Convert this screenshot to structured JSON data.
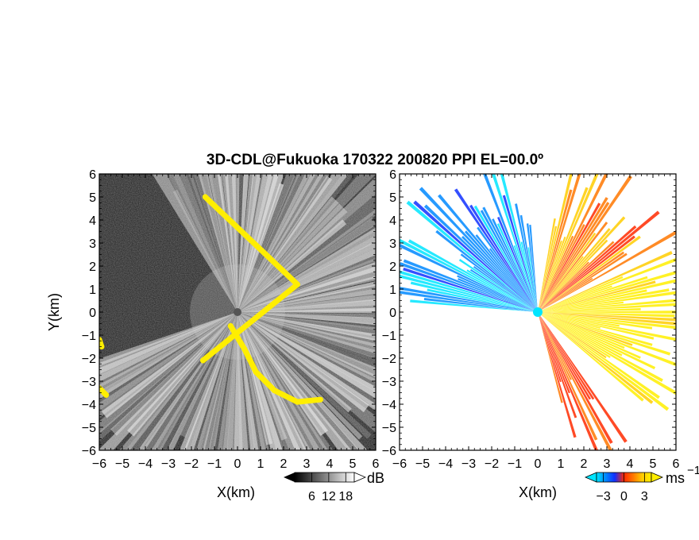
{
  "chart_data": [
    {
      "type": "heatmap",
      "title": "3D-CDL@Fukuoka 170322 200820 PPI EL=00.0º",
      "panel": "left",
      "quantity": "signal intensity",
      "xlabel": "X(km)",
      "ylabel": "Y(km)",
      "xlim": [
        -6,
        6
      ],
      "ylim": [
        -6,
        6
      ],
      "xticks": [
        "−6",
        "−5",
        "−4",
        "−3",
        "−2",
        "−1",
        "0",
        "1",
        "2",
        "3",
        "4",
        "5",
        "6"
      ],
      "yticks": [
        "−6",
        "−5",
        "−4",
        "−3",
        "−2",
        "−1",
        "0",
        "1",
        "2",
        "3",
        "4",
        "5",
        "6"
      ],
      "colorbar": {
        "unit": "dB",
        "ticks": [
          6,
          12,
          18
        ],
        "range": [
          0,
          21
        ],
        "colormap": "gray"
      },
      "highlight_color": "#ffee00",
      "background_color": "#1c1c1c",
      "beam_sector": {
        "from_deg": -160,
        "to_deg": 120,
        "note": "brighter beams from center outward"
      },
      "yellow_regions": [
        {
          "name": "southeast-band",
          "points": [
            [
              -0.3,
              -0.6
            ],
            [
              0.3,
              -1.6
            ],
            [
              0.8,
              -2.6
            ],
            [
              1.6,
              -3.4
            ],
            [
              2.6,
              -3.9
            ],
            [
              3.6,
              -3.8
            ]
          ]
        },
        {
          "name": "west-edge-upper",
          "points": [
            [
              -6,
              -1.2
            ],
            [
              -5.9,
              -1.5
            ]
          ]
        },
        {
          "name": "west-edge-lower",
          "points": [
            [
              -6,
              -3.3
            ],
            [
              -5.7,
              -3.6
            ]
          ]
        },
        {
          "name": "isolated",
          "points": [
            [
              -1.4,
              5.0
            ],
            [
              2.6,
              1.2
            ],
            [
              -1.5,
              -2.1
            ]
          ]
        }
      ]
    },
    {
      "type": "heatmap",
      "panel": "right",
      "quantity": "radial velocity",
      "xlabel": "X(km)",
      "xlim": [
        -6,
        6
      ],
      "ylim": [
        -6,
        6
      ],
      "xticks": [
        "−6",
        "−5",
        "−4",
        "−3",
        "−2",
        "−1",
        "0",
        "1",
        "2",
        "3",
        "4",
        "5",
        "6"
      ],
      "yticks": [
        "−6",
        "−5",
        "−4",
        "−3",
        "−2",
        "−1",
        "0",
        "1",
        "2",
        "3",
        "4",
        "5",
        "6"
      ],
      "colorbar": {
        "unit": "ms",
        "unit_exponent": "−1",
        "ticks": [
          "−3",
          "0",
          "3"
        ],
        "range": [
          -4,
          4
        ],
        "colors": [
          "#00e5ff",
          "#0088ff",
          "#1030ff",
          "#ff2a00",
          "#ff7700",
          "#ffcc00",
          "#ffee00"
        ]
      },
      "features": [
        {
          "name": "northwest-negative-sector",
          "velocity": -2.5,
          "from_deg": 95,
          "to_deg": 175
        },
        {
          "name": "northeast-positive-sector",
          "velocity": 1.5,
          "from_deg": 30,
          "to_deg": 80
        },
        {
          "name": "east-positive-sector",
          "velocity": 3.5,
          "from_deg": -40,
          "to_deg": 25
        },
        {
          "name": "southeast-edge",
          "velocity": 0.5,
          "from_deg": -75,
          "to_deg": -55
        }
      ],
      "origin_marker_color": "#00e5ff"
    }
  ]
}
